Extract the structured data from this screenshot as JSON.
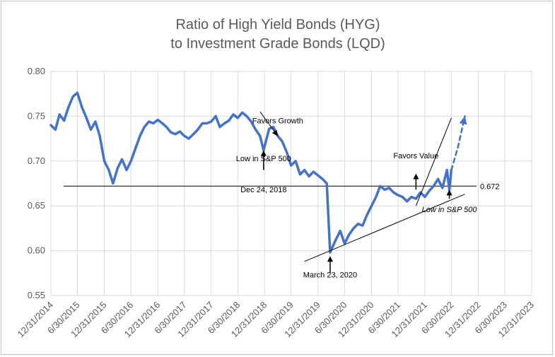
{
  "chart_data": {
    "type": "line",
    "title": "Ratio of High Yield Bonds (HYG)",
    "subtitle": "to Investment Grade Bonds (LQD)",
    "xlabel": "",
    "ylabel": "",
    "ylim": [
      0.55,
      0.8
    ],
    "yticks": [
      "0.80",
      "0.75",
      "0.70",
      "0.65",
      "0.60",
      "0.55"
    ],
    "ytick_values": [
      0.8,
      0.75,
      0.7,
      0.65,
      0.6,
      0.55
    ],
    "xticks": [
      "12/31/2014",
      "6/30/2015",
      "12/31/2015",
      "6/30/2016",
      "12/31/2016",
      "6/30/2017",
      "12/31/2017",
      "6/30/2018",
      "12/31/2018",
      "6/30/2019",
      "12/31/2019",
      "6/30/2020",
      "12/31/2020",
      "6/30/2021",
      "12/31/2021",
      "6/30/2022",
      "12/31/2022",
      "6/30/2023",
      "12/31/2023"
    ],
    "grid": "horizontal",
    "colors": {
      "series": "#4472c4",
      "grid": "#d9d9d9",
      "annotation": "#000000"
    },
    "series": [
      {
        "x": [
          "12/31/2014",
          "1/31/2015",
          "2/28/2015",
          "3/31/2015",
          "4/30/2015",
          "5/31/2015",
          "6/30/2015",
          "7/31/2015",
          "8/31/2015",
          "9/30/2015",
          "10/31/2015",
          "11/30/2015",
          "12/31/2015",
          "1/31/2016",
          "2/29/2016",
          "3/31/2016",
          "4/30/2016",
          "5/31/2016",
          "6/30/2016",
          "7/31/2016",
          "8/31/2016",
          "9/30/2016",
          "10/31/2016",
          "11/30/2016",
          "12/31/2016",
          "1/31/2017",
          "2/28/2017",
          "3/31/2017",
          "4/30/2017",
          "5/31/2017",
          "6/30/2017",
          "7/31/2017",
          "8/31/2017",
          "9/30/2017",
          "10/31/2017",
          "11/30/2017",
          "12/31/2017",
          "1/31/2018",
          "2/28/2018",
          "3/31/2018",
          "4/30/2018",
          "5/31/2018",
          "6/30/2018",
          "7/31/2018",
          "8/31/2018",
          "9/30/2018",
          "10/31/2018",
          "11/30/2018",
          "12/24/2018",
          "1/31/2019",
          "2/28/2019",
          "3/31/2019",
          "4/30/2019",
          "5/31/2019",
          "6/30/2019",
          "7/31/2019",
          "8/31/2019",
          "9/30/2019",
          "10/31/2019",
          "11/30/2019",
          "12/31/2019",
          "1/31/2020",
          "2/29/2020",
          "3/23/2020",
          "4/30/2020",
          "5/31/2020",
          "6/30/2020",
          "7/31/2020",
          "8/31/2020",
          "9/30/2020",
          "10/31/2020",
          "11/30/2020",
          "12/31/2020",
          "1/31/2021",
          "2/28/2021",
          "3/31/2021",
          "4/30/2021",
          "5/31/2021",
          "6/30/2021",
          "7/31/2021",
          "8/31/2021",
          "9/30/2021",
          "10/31/2021",
          "11/30/2021",
          "12/31/2021",
          "1/31/2022",
          "2/28/2022",
          "3/31/2022",
          "4/30/2022",
          "5/31/2022",
          "6/16/2022",
          "6/30/2022"
        ],
        "values": [
          0.74,
          0.735,
          0.752,
          0.745,
          0.76,
          0.772,
          0.776,
          0.76,
          0.748,
          0.735,
          0.744,
          0.728,
          0.7,
          0.69,
          0.675,
          0.692,
          0.702,
          0.69,
          0.7,
          0.714,
          0.728,
          0.738,
          0.744,
          0.742,
          0.746,
          0.742,
          0.738,
          0.732,
          0.73,
          0.733,
          0.728,
          0.725,
          0.73,
          0.735,
          0.742,
          0.742,
          0.744,
          0.75,
          0.738,
          0.742,
          0.745,
          0.752,
          0.748,
          0.754,
          0.75,
          0.744,
          0.735,
          0.728,
          0.712,
          0.736,
          0.738,
          0.728,
          0.722,
          0.71,
          0.695,
          0.7,
          0.685,
          0.69,
          0.683,
          0.688,
          0.684,
          0.68,
          0.675,
          0.598,
          0.612,
          0.622,
          0.608,
          0.618,
          0.625,
          0.63,
          0.628,
          0.64,
          0.65,
          0.66,
          0.672,
          0.668,
          0.67,
          0.665,
          0.662,
          0.66,
          0.655,
          0.66,
          0.658,
          0.665,
          0.66,
          0.667,
          0.672,
          0.68,
          0.67,
          0.69,
          0.668,
          0.69
        ]
      },
      {
        "line_style": "dashed",
        "x": [
          "6/30/2022",
          "8/15/2022",
          "9/30/2022"
        ],
        "values": [
          0.69,
          0.716,
          0.75
        ]
      }
    ],
    "reference_lines": [
      {
        "orientation": "horizontal",
        "value": 0.672,
        "label": "0.672"
      }
    ],
    "trend_lines": [
      {
        "x": [
          "11/30/2018",
          "3/31/2019"
        ],
        "values": [
          0.755,
          0.728
        ]
      },
      {
        "x": [
          "9/30/2019",
          "9/30/2022"
        ],
        "values": [
          0.588,
          0.663
        ]
      },
      {
        "x": [
          "10/31/2021",
          "6/30/2022"
        ],
        "values": [
          0.65,
          0.748
        ]
      }
    ],
    "annotations": [
      {
        "text": "Favors Growth",
        "x": "3/31/2019",
        "y": 0.742,
        "style": "normal"
      },
      {
        "text": "Low in S&P 500",
        "x": "12/24/2018",
        "y": 0.7,
        "style": "normal"
      },
      {
        "text": "Dec 24, 2018",
        "x": "12/24/2018",
        "y": 0.665,
        "style": "normal"
      },
      {
        "text": "Favors Value",
        "x": "10/31/2021",
        "y": 0.703,
        "style": "normal"
      },
      {
        "text": "March 23, 2020",
        "x": "3/23/2020",
        "y": 0.57,
        "style": "normal"
      },
      {
        "text": "Low in S&P 500",
        "x": "6/16/2022",
        "y": 0.643,
        "style": "italic"
      }
    ],
    "arrows": [
      {
        "x": "12/24/2018",
        "from": 0.69,
        "to": 0.712
      },
      {
        "x": "3/23/2020",
        "from": 0.575,
        "to": 0.594
      },
      {
        "x": "6/16/2022",
        "from": 0.658,
        "to": 0.668
      },
      {
        "x": "10/31/2021",
        "from": 0.668,
        "to": 0.686
      }
    ]
  }
}
